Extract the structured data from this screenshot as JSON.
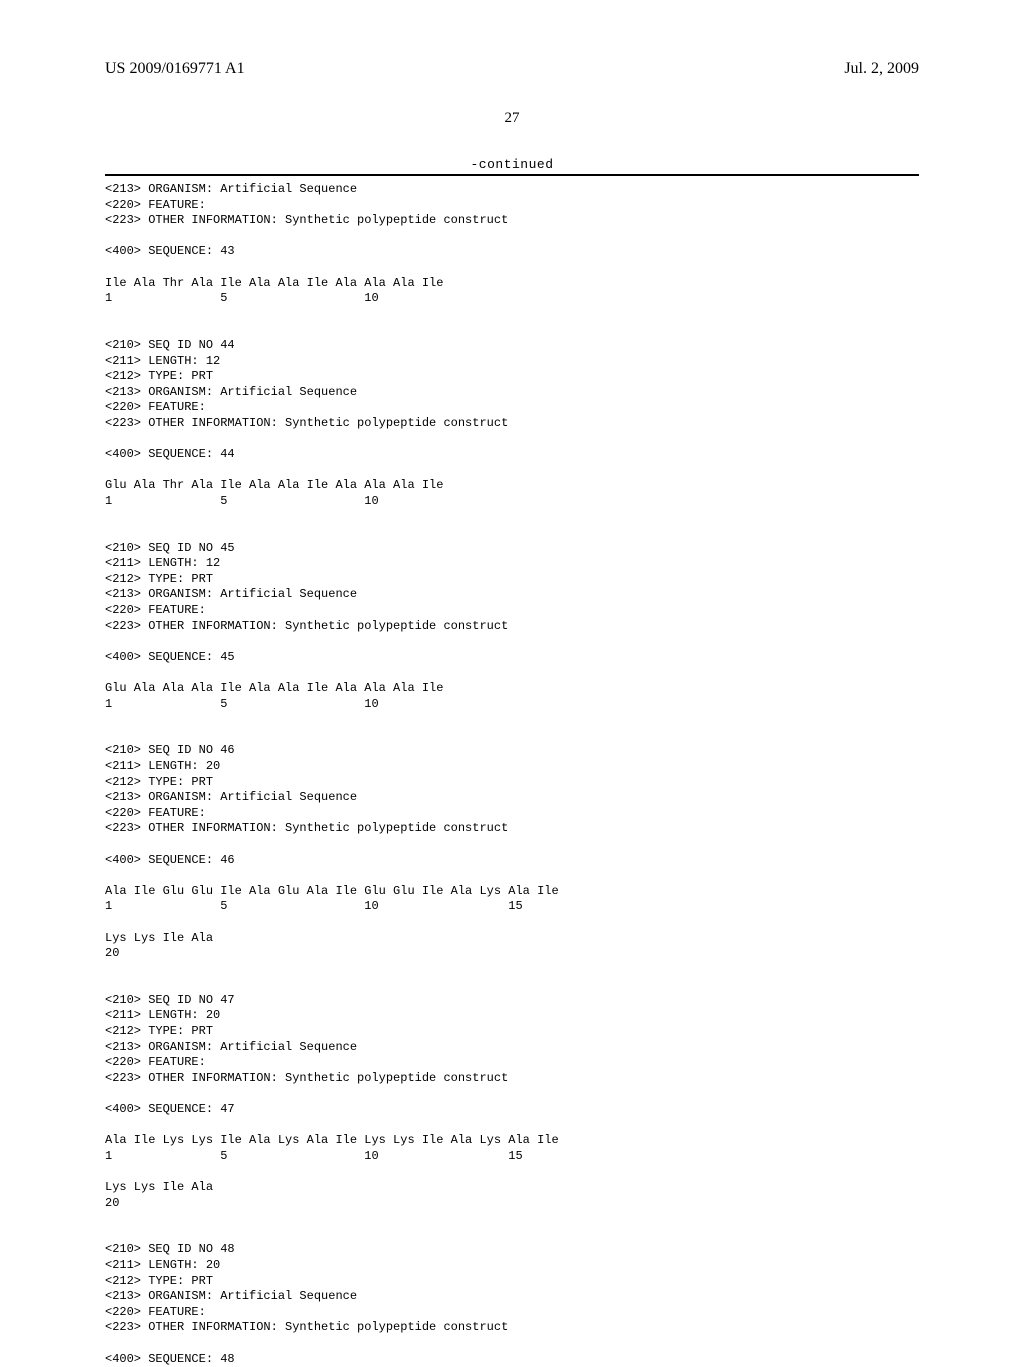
{
  "header": {
    "left": "US 2009/0169771 A1",
    "right": "Jul. 2, 2009"
  },
  "page_number": "27",
  "continued_label": "-continued",
  "sequences": {
    "block_43_tail": [
      "<213> ORGANISM: Artificial Sequence",
      "<220> FEATURE:",
      "<223> OTHER INFORMATION: Synthetic polypeptide construct",
      "",
      "<400> SEQUENCE: 43",
      "",
      "Ile Ala Thr Ala Ile Ala Ala Ile Ala Ala Ala Ile",
      "1               5                   10",
      "",
      ""
    ],
    "block_44": [
      "<210> SEQ ID NO 44",
      "<211> LENGTH: 12",
      "<212> TYPE: PRT",
      "<213> ORGANISM: Artificial Sequence",
      "<220> FEATURE:",
      "<223> OTHER INFORMATION: Synthetic polypeptide construct",
      "",
      "<400> SEQUENCE: 44",
      "",
      "Glu Ala Thr Ala Ile Ala Ala Ile Ala Ala Ala Ile",
      "1               5                   10",
      "",
      ""
    ],
    "block_45": [
      "<210> SEQ ID NO 45",
      "<211> LENGTH: 12",
      "<212> TYPE: PRT",
      "<213> ORGANISM: Artificial Sequence",
      "<220> FEATURE:",
      "<223> OTHER INFORMATION: Synthetic polypeptide construct",
      "",
      "<400> SEQUENCE: 45",
      "",
      "Glu Ala Ala Ala Ile Ala Ala Ile Ala Ala Ala Ile",
      "1               5                   10",
      "",
      ""
    ],
    "block_46": [
      "<210> SEQ ID NO 46",
      "<211> LENGTH: 20",
      "<212> TYPE: PRT",
      "<213> ORGANISM: Artificial Sequence",
      "<220> FEATURE:",
      "<223> OTHER INFORMATION: Synthetic polypeptide construct",
      "",
      "<400> SEQUENCE: 46",
      "",
      "Ala Ile Glu Glu Ile Ala Glu Ala Ile Glu Glu Ile Ala Lys Ala Ile",
      "1               5                   10                  15",
      "",
      "Lys Lys Ile Ala",
      "20",
      "",
      ""
    ],
    "block_47": [
      "<210> SEQ ID NO 47",
      "<211> LENGTH: 20",
      "<212> TYPE: PRT",
      "<213> ORGANISM: Artificial Sequence",
      "<220> FEATURE:",
      "<223> OTHER INFORMATION: Synthetic polypeptide construct",
      "",
      "<400> SEQUENCE: 47",
      "",
      "Ala Ile Lys Lys Ile Ala Lys Ala Ile Lys Lys Ile Ala Lys Ala Ile",
      "1               5                   10                  15",
      "",
      "Lys Lys Ile Ala",
      "20",
      "",
      ""
    ],
    "block_48": [
      "<210> SEQ ID NO 48",
      "<211> LENGTH: 20",
      "<212> TYPE: PRT",
      "<213> ORGANISM: Artificial Sequence",
      "<220> FEATURE:",
      "<223> OTHER INFORMATION: Synthetic polypeptide construct",
      "",
      "<400> SEQUENCE: 48"
    ]
  }
}
